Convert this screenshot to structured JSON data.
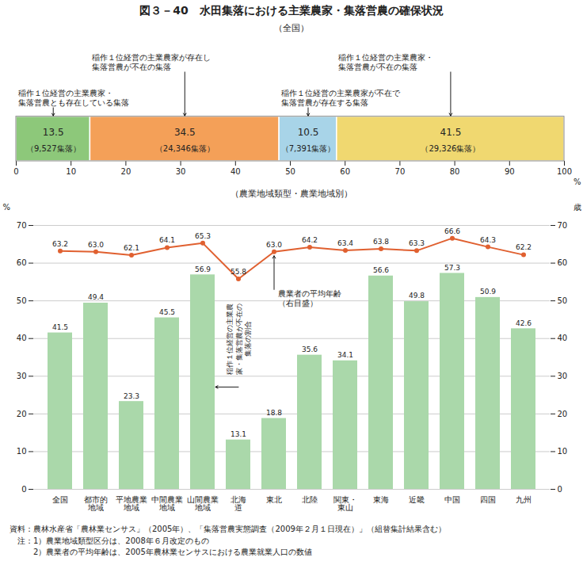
{
  "chart_data": [
    {
      "type": "bar",
      "title": "図３－40　水田集落における主業農家・集落営農の確保状況",
      "subtitle": "（全国）",
      "orientation": "horizontal",
      "stacked": true,
      "data_labels": true,
      "categories": [
        null
      ],
      "xlim": [
        0,
        100
      ],
      "xticks": [
        0,
        10,
        20,
        30,
        40,
        50,
        60,
        70,
        80,
        90,
        100
      ],
      "xlabel": "%",
      "series": [
        {
          "name": "稲作１位経営の主業農家・\n集落営農とも存在している集落",
          "color": "#8dc87a",
          "values": [
            13.5
          ],
          "counts": [
            9527
          ],
          "count_labels": [
            "（9,527集落）"
          ]
        },
        {
          "name": "稲作１位経営の主業農家が存在し\n集落営農が不在の集落",
          "color": "#f4a058",
          "values": [
            34.5
          ],
          "counts": [
            24346
          ],
          "count_labels": [
            "（24,346集落）"
          ]
        },
        {
          "name": "稲作１位経営の主業農家が不在で\n集落営農が存在する集落",
          "color": "#a8d4e8",
          "values": [
            10.5
          ],
          "counts": [
            7391
          ],
          "count_labels": [
            "（7,391集落）"
          ]
        },
        {
          "name": "稲作１位経営の主業農家・\n集落営農が不在の集落",
          "color": "#f0d870",
          "values": [
            41.5
          ],
          "counts": [
            29326
          ],
          "count_labels": [
            "（29,326集落）"
          ]
        }
      ]
    },
    {
      "type": "bar",
      "subtitle": "（農業地域類型・農業地域別）",
      "categories": [
        "全国",
        "都市的\n地域",
        "平地農業\n地域",
        "中間農業\n地域",
        "山間農業\n地域",
        "北海\n道",
        "東北",
        "北陸",
        "関東・\n東山",
        "東海",
        "近畿",
        "中国",
        "四国",
        "九州"
      ],
      "ylim": [
        0,
        70
      ],
      "yticks": [
        0,
        10,
        20,
        30,
        40,
        50,
        60,
        70
      ],
      "ylabel": "%",
      "y2lim": [
        0,
        70
      ],
      "y2ticks": [
        0,
        10,
        20,
        30,
        40,
        50,
        60,
        70
      ],
      "y2label": "歳",
      "grid": true,
      "data_labels": true,
      "series": [
        {
          "name": "稲作１位経営の主業農\n家・集落営農が不在の\n集落の割合",
          "type": "bar",
          "color": "#aad8aa",
          "values": [
            41.5,
            49.4,
            23.3,
            45.5,
            56.9,
            13.1,
            18.8,
            35.6,
            34.1,
            56.6,
            49.8,
            57.3,
            50.9,
            42.6
          ]
        },
        {
          "name": "農業者の平均年齢\n（右目盛）",
          "type": "line",
          "axis": "y2",
          "color": "#e06030",
          "marker": "circle",
          "values": [
            63.2,
            63.0,
            62.1,
            64.1,
            65.3,
            55.8,
            63.0,
            64.2,
            63.4,
            63.8,
            63.3,
            66.6,
            64.3,
            62.2
          ],
          "value_labels": [
            "63.2",
            "63.0",
            "62.1",
            "64.1",
            "65.3",
            "55.8",
            "63.0",
            "64.2",
            "63.4",
            "63.8",
            "63.3",
            "66.6",
            "64.3",
            "62.2"
          ]
        }
      ],
      "footnotes": [
        "資料：農林水産省「農林業センサス」（2005年）、「集落営農実態調査（2009年２月１日現在）」（組替集計結果含む）",
        "　注：1）農業地域類型区分は、2008年６月改定のもの",
        "　　　2）農業者の平均年齢は、2005年農林業センサスにおける農業就業人口の数値"
      ]
    }
  ]
}
